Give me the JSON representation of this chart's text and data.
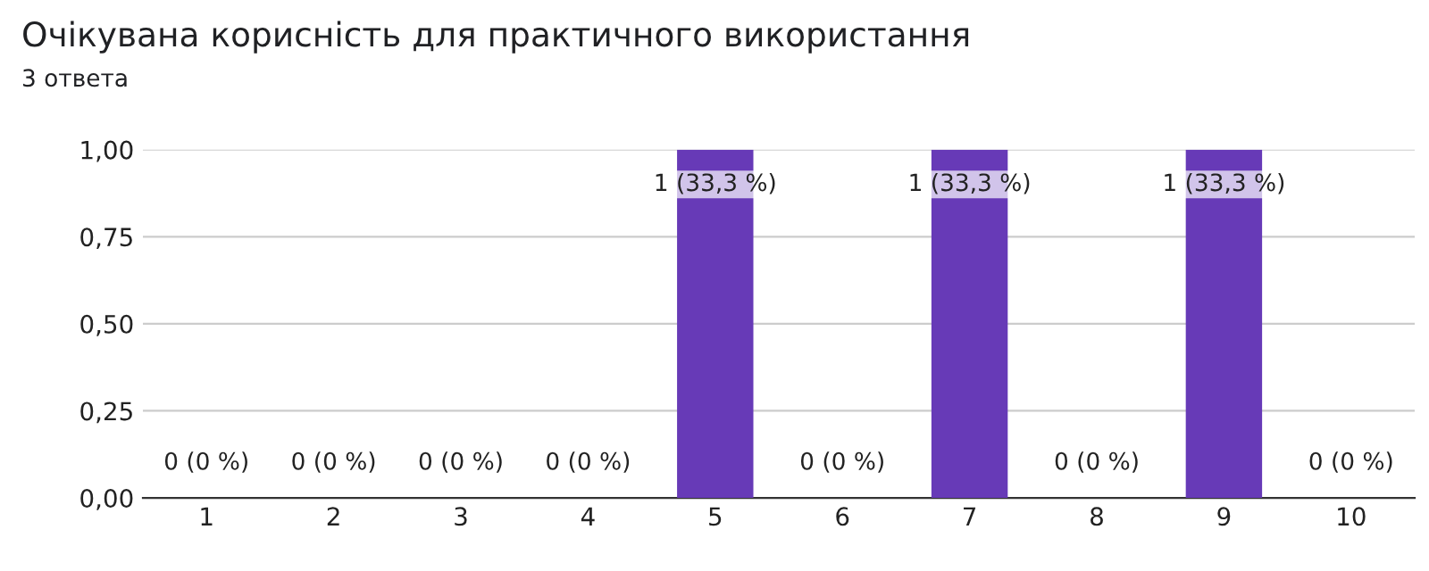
{
  "chart_data": {
    "type": "bar",
    "title": "Очікувана корисність для практичного використання",
    "subtitle": "3 ответа",
    "categories": [
      "1",
      "2",
      "3",
      "4",
      "5",
      "6",
      "7",
      "8",
      "9",
      "10"
    ],
    "values": [
      0,
      0,
      0,
      0,
      1,
      0,
      1,
      0,
      1,
      0
    ],
    "value_labels": [
      "0 (0 %)",
      "0 (0 %)",
      "0 (0 %)",
      "0 (0 %)",
      "1 (33,3 %)",
      "0 (0 %)",
      "1 (33,3 %)",
      "0 (0 %)",
      "1 (33,3 %)",
      "0 (0 %)"
    ],
    "color": "#673ab7",
    "ylim": [
      0,
      1
    ],
    "yticks": [
      {
        "value": 0,
        "label": "0,00"
      },
      {
        "value": 0.25,
        "label": "0,25"
      },
      {
        "value": 0.5,
        "label": "0,50"
      },
      {
        "value": 0.75,
        "label": "0,75"
      },
      {
        "value": 1,
        "label": "1,00"
      }
    ],
    "grid": "y"
  }
}
